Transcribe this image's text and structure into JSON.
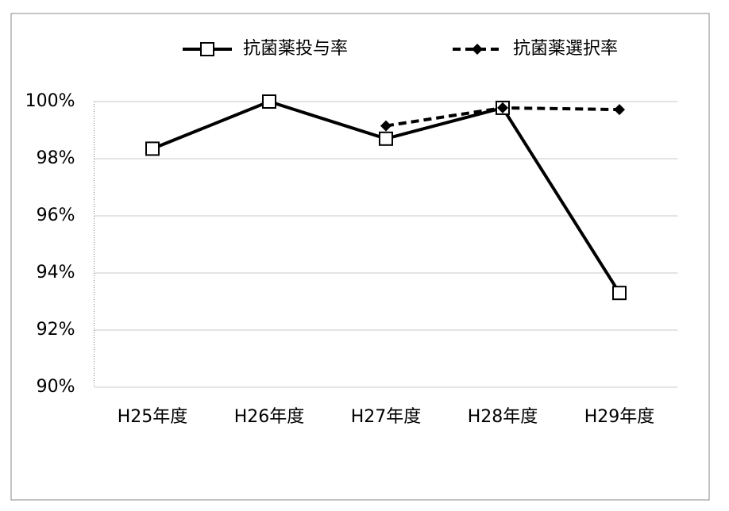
{
  "chart_data": {
    "type": "line",
    "categories": [
      "H25年度",
      "H26年度",
      "H27年度",
      "H28年度",
      "H29年度"
    ],
    "series": [
      {
        "name": "抗菌薬投与率",
        "color": "#000000",
        "line_style": "solid",
        "marker": "square",
        "values": [
          98.35,
          100,
          98.7,
          99.78,
          93.3
        ]
      },
      {
        "name": "抗菌薬選択率",
        "color": "#000000",
        "line_style": "dashed",
        "marker": "diamond",
        "values": [
          null,
          null,
          99.15,
          99.78,
          99.72
        ]
      }
    ],
    "ylim": [
      90,
      100
    ],
    "yticks": [
      {
        "value": 90,
        "label": "90%"
      },
      {
        "value": 92,
        "label": "92%"
      },
      {
        "value": 94,
        "label": "94%"
      },
      {
        "value": 96,
        "label": "96%"
      },
      {
        "value": 98,
        "label": "98%"
      },
      {
        "value": 100,
        "label": "100%"
      }
    ],
    "grid": true,
    "legend": "top"
  }
}
